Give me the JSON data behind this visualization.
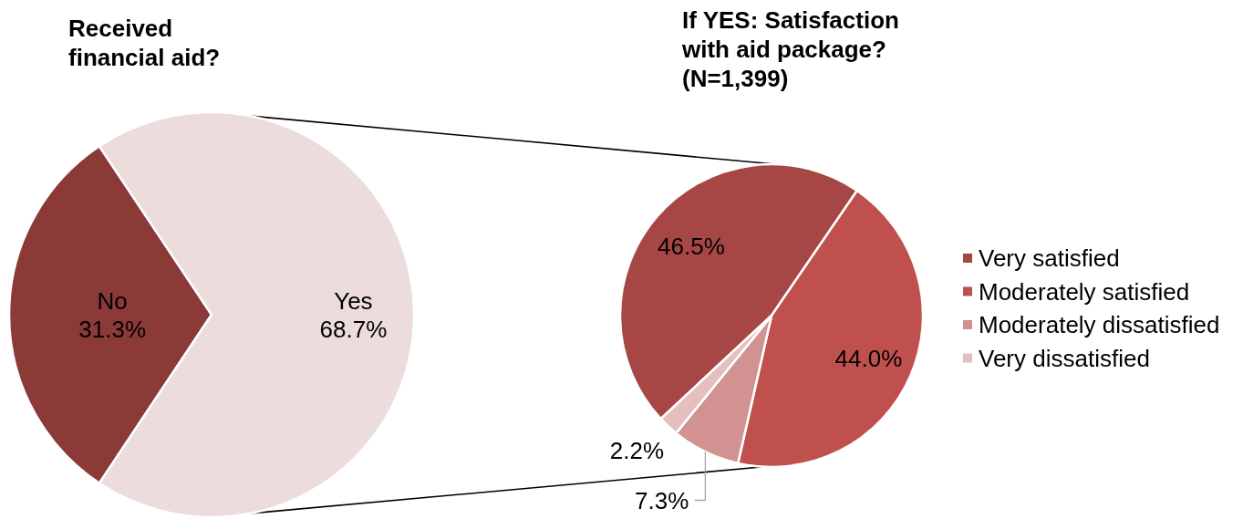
{
  "chart_data": [
    {
      "type": "pie",
      "title": "Received financial aid?",
      "categories": [
        "No",
        "Yes"
      ],
      "values": [
        31.3,
        68.7
      ],
      "colors": [
        "#8b3a38",
        "#ecdcdc"
      ],
      "value_labels": [
        "31.3%",
        "68.7%"
      ],
      "legend": false
    },
    {
      "type": "pie",
      "title": "If YES: Satisfaction with aid package? (N=1,399)",
      "categories": [
        "Very satisfied",
        "Moderately satisfied",
        "Moderately dissatisfied",
        "Very dissatisfied"
      ],
      "values": [
        46.5,
        44.0,
        7.3,
        2.2
      ],
      "colors": [
        "#a74745",
        "#c0504d",
        "#d29291",
        "#e5bfbf"
      ],
      "value_labels": [
        "46.5%",
        "44.0%",
        "7.3%",
        "2.2%"
      ],
      "legend": "right"
    }
  ]
}
